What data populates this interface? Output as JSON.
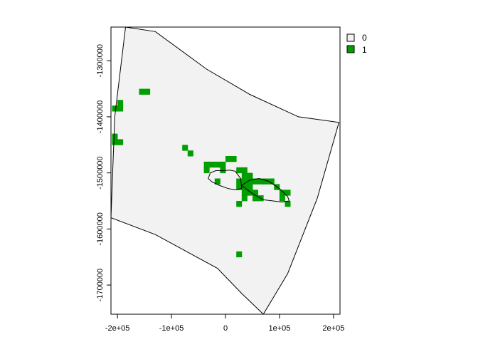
{
  "chart_data": {
    "type": "raster-map",
    "x_ticks": [
      "-2e+05",
      "-1e+05",
      "0",
      "1e+05",
      "2e+05"
    ],
    "y_ticks": [
      "-1300000",
      "-1400000",
      "-1500000",
      "-1600000",
      "-1700000"
    ],
    "legend": [
      {
        "label": "0",
        "color": "#f2f2f2"
      },
      {
        "label": "1",
        "color": "#009e00"
      }
    ],
    "extent": {
      "xmin": -212000,
      "xmax": 212000,
      "ymin": -1752000,
      "ymax": -1240000
    },
    "boundary_polygon": [
      [
        -185000,
        -1240000
      ],
      [
        -130000,
        -1248000
      ],
      [
        -35000,
        -1315000
      ],
      [
        45000,
        -1360000
      ],
      [
        135000,
        -1400000
      ],
      [
        210000,
        -1410000
      ],
      [
        170000,
        -1545000
      ],
      [
        115000,
        -1680000
      ],
      [
        70000,
        -1752000
      ],
      [
        30000,
        -1715000
      ],
      [
        -15000,
        -1670000
      ],
      [
        -130000,
        -1610000
      ],
      [
        -212000,
        -1580000
      ],
      [
        -205000,
        -1400000
      ]
    ],
    "island_outlines": [
      [
        [
          -32000,
          -1510000
        ],
        [
          -28000,
          -1500000
        ],
        [
          -18000,
          -1496000
        ],
        [
          -5000,
          -1496000
        ],
        [
          8000,
          -1495000
        ],
        [
          18000,
          -1497000
        ],
        [
          28000,
          -1510000
        ],
        [
          30000,
          -1528000
        ],
        [
          18000,
          -1530000
        ],
        [
          5000,
          -1528000
        ],
        [
          -12000,
          -1522000
        ],
        [
          -25000,
          -1516000
        ]
      ],
      [
        [
          30000,
          -1522000
        ],
        [
          45000,
          -1513000
        ],
        [
          62000,
          -1510000
        ],
        [
          80000,
          -1515000
        ],
        [
          100000,
          -1528000
        ],
        [
          115000,
          -1542000
        ],
        [
          118000,
          -1550000
        ],
        [
          105000,
          -1552000
        ],
        [
          88000,
          -1550000
        ],
        [
          70000,
          -1548000
        ],
        [
          55000,
          -1540000
        ],
        [
          40000,
          -1530000
        ]
      ]
    ],
    "value_1_cells": [
      [
        -155000,
        -1355000
      ],
      [
        -145000,
        -1355000
      ],
      [
        -195000,
        -1375000
      ],
      [
        -205000,
        -1385000
      ],
      [
        -195000,
        -1385000
      ],
      [
        -205000,
        -1435000
      ],
      [
        -205000,
        -1445000
      ],
      [
        -195000,
        -1445000
      ],
      [
        -75000,
        -1455000
      ],
      [
        -65000,
        -1465000
      ],
      [
        5000,
        -1475000
      ],
      [
        15000,
        -1475000
      ],
      [
        -35000,
        -1485000
      ],
      [
        -25000,
        -1485000
      ],
      [
        -15000,
        -1485000
      ],
      [
        -5000,
        -1485000
      ],
      [
        -35000,
        -1495000
      ],
      [
        -5000,
        -1495000
      ],
      [
        25000,
        -1495000
      ],
      [
        35000,
        -1495000
      ],
      [
        35000,
        -1505000
      ],
      [
        45000,
        -1505000
      ],
      [
        -15000,
        -1515000
      ],
      [
        25000,
        -1515000
      ],
      [
        35000,
        -1515000
      ],
      [
        45000,
        -1515000
      ],
      [
        55000,
        -1515000
      ],
      [
        65000,
        -1515000
      ],
      [
        75000,
        -1515000
      ],
      [
        85000,
        -1515000
      ],
      [
        25000,
        -1525000
      ],
      [
        35000,
        -1525000
      ],
      [
        45000,
        -1525000
      ],
      [
        95000,
        -1525000
      ],
      [
        35000,
        -1535000
      ],
      [
        45000,
        -1535000
      ],
      [
        55000,
        -1535000
      ],
      [
        105000,
        -1535000
      ],
      [
        115000,
        -1535000
      ],
      [
        35000,
        -1545000
      ],
      [
        55000,
        -1545000
      ],
      [
        65000,
        -1545000
      ],
      [
        105000,
        -1545000
      ],
      [
        25000,
        -1555000
      ],
      [
        115000,
        -1555000
      ],
      [
        25000,
        -1645000
      ]
    ]
  }
}
